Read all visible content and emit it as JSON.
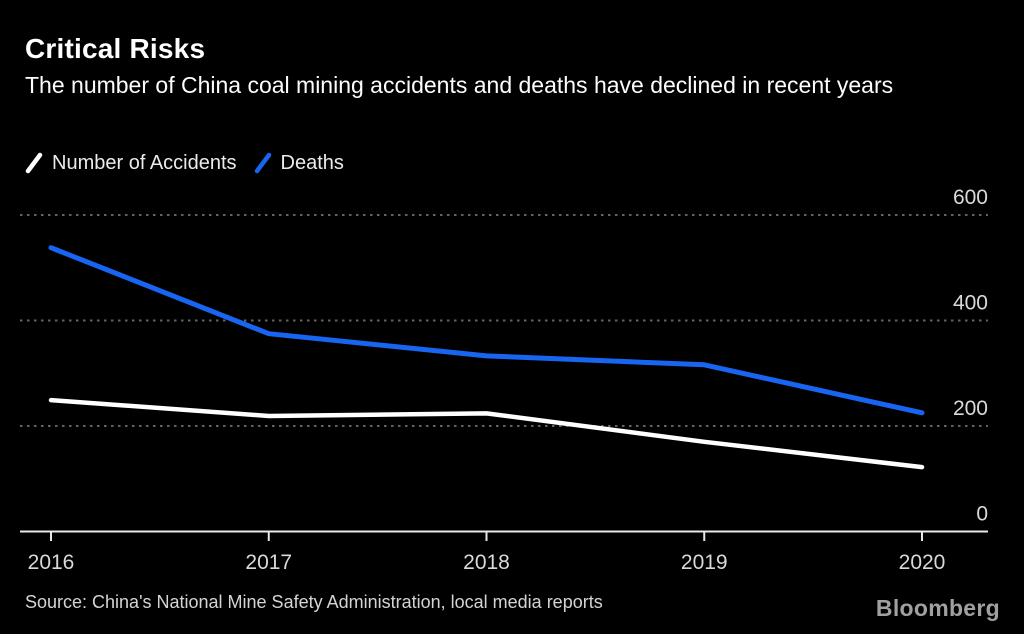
{
  "page": {
    "background": "#000000"
  },
  "header": {
    "title": "Critical Risks",
    "subtitle": "The number of China coal mining accidents and deaths have declined in recent years"
  },
  "legend": {
    "items": [
      {
        "label": "Number of Accidents",
        "color": "#ffffff"
      },
      {
        "label": "Deaths",
        "color": "#1865f2"
      }
    ]
  },
  "chart_data": {
    "type": "line",
    "title": "Critical Risks",
    "subtitle": "The number of China coal mining accidents and deaths have declined in recent years",
    "categories": [
      "2016",
      "2017",
      "2018",
      "2019",
      "2020"
    ],
    "series": [
      {
        "name": "Number of Accidents",
        "color": "#ffffff",
        "values": [
          249,
          219,
          224,
          170,
          122
        ]
      },
      {
        "name": "Deaths",
        "color": "#1865f2",
        "values": [
          538,
          375,
          333,
          316,
          225
        ]
      }
    ],
    "ylim": [
      0,
      600
    ],
    "yticks": [
      0,
      200,
      400,
      600
    ],
    "grid": "horizontal-dotted",
    "legend_position": "top-left",
    "colors": {
      "background": "#000000",
      "gridline": "#636363",
      "axis_line": "#e8e8e8",
      "tick_label": "#d9d9d9"
    }
  },
  "footer": {
    "source": "Source: China's National Mine Safety Administration, local media reports",
    "brand": "Bloomberg"
  }
}
